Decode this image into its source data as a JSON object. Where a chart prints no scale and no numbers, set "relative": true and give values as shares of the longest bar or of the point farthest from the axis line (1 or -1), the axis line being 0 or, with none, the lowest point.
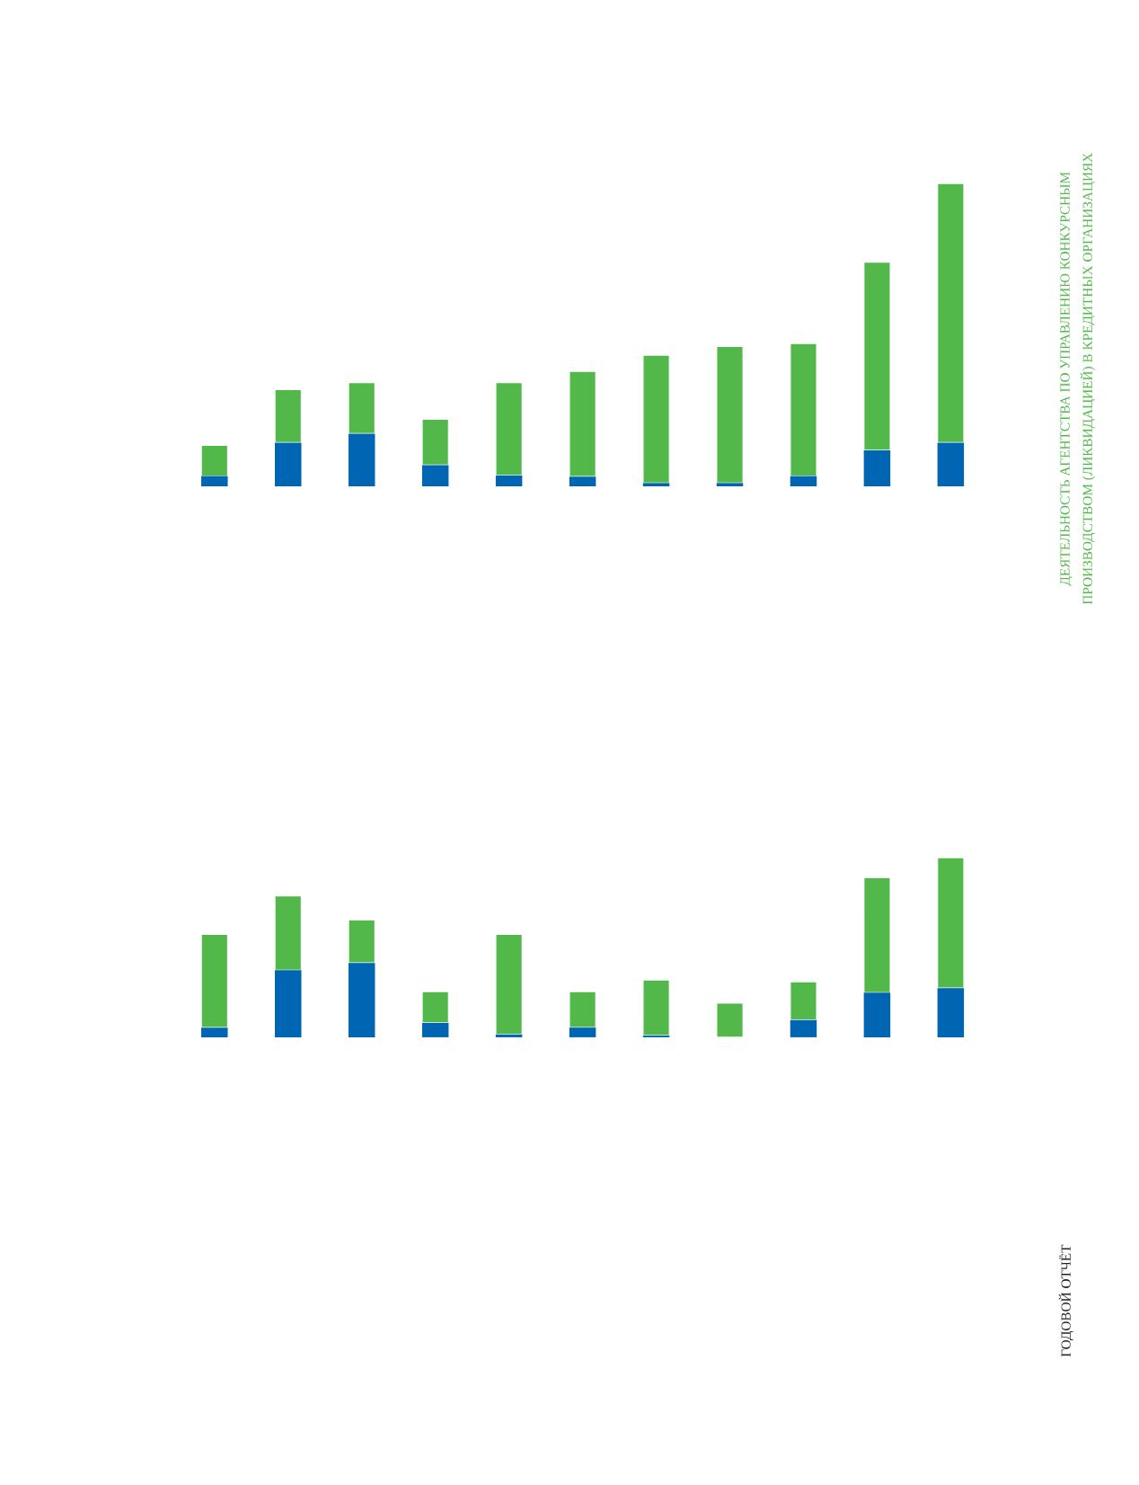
{
  "chart_data": [
    {
      "type": "bar",
      "stacked": true,
      "relative": true,
      "categories": [
        null,
        null,
        null,
        null,
        null,
        null,
        null,
        null,
        null,
        null,
        null
      ],
      "series": [
        {
          "color": "#0066b3",
          "values": [
            0.034,
            0.144,
            0.174,
            0.07,
            0.036,
            0.032,
            0.011,
            0.011,
            0.034,
            0.119,
            0.144
          ]
        },
        {
          "color": "#52b84a",
          "values": [
            0.102,
            0.176,
            0.169,
            0.152,
            0.307,
            0.348,
            0.422,
            0.451,
            0.438,
            0.621,
            0.856
          ]
        }
      ],
      "annotations": [
        "ДЕЯТЕЛЬНОСТЬ АГЕНТСТВА ПО УПРАВЛЕНИЮ КОНКУРСНЫМ",
        "ПРОИЗВОДСТВОМ (ЛИКВИДАЦИЕЙ) В КРЕДИТНЫХ ОРГАНИЗАЦИЯХ",
        "ГОДОВОЙ ОТЧЁТ"
      ]
    },
    {
      "type": "bar",
      "stacked": true,
      "relative": true,
      "categories": [
        null,
        null,
        null,
        null,
        null,
        null,
        null,
        null,
        null,
        null,
        null
      ],
      "series": [
        {
          "color": "#0066b3",
          "values": [
            0.054,
            0.373,
            0.414,
            0.08,
            0.016,
            0.054,
            0.01,
            0,
            0.096,
            0.248,
            0.274
          ]
        },
        {
          "color": "#52b84a",
          "values": [
            0.519,
            0.414,
            0.239,
            0.175,
            0.557,
            0.201,
            0.309,
            0.191,
            0.213,
            0.64,
            0.726
          ]
        }
      ]
    }
  ]
}
